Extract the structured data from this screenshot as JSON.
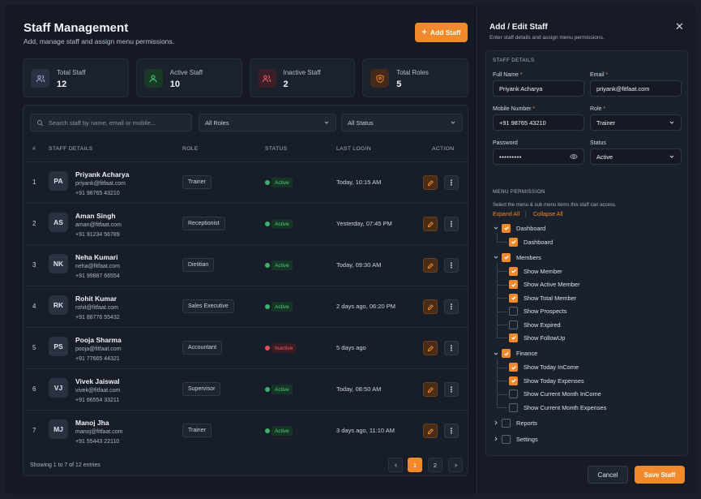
{
  "header": {
    "title": "Staff Management",
    "subtitle": "Add, manage staff and assign menu permissions.",
    "add_button": "Add Staff"
  },
  "stats": [
    {
      "label": "Total Staff",
      "value": "12",
      "icon": "users-icon",
      "color": "#6b7fa8"
    },
    {
      "label": "Active Staff",
      "value": "10",
      "icon": "user-check-icon",
      "color": "#3fb06a"
    },
    {
      "label": "Inactive Staff",
      "value": "2",
      "icon": "user-x-icon",
      "color": "#d9505a"
    },
    {
      "label": "Total Roles",
      "value": "5",
      "icon": "roles-icon",
      "color": "#f08a2c"
    }
  ],
  "filters": {
    "search_placeholder": "Search staff by name, email or mobile...",
    "role_select": "All Roles",
    "status_select": "All Status"
  },
  "table": {
    "headers": {
      "num": "#",
      "details": "STAFF DETAILS",
      "role": "ROLE",
      "status": "STATUS",
      "login": "LAST LOGIN",
      "action": "ACTION"
    },
    "rows": [
      {
        "num": "1",
        "initials": "PA",
        "name": "Priyank Acharya",
        "email": "priyank@fitfaat.com",
        "phone": "+91 98765 43210",
        "role": "Trainer",
        "status": "Active",
        "login": "Today, 10:15 AM"
      },
      {
        "num": "2",
        "initials": "AS",
        "name": "Aman Singh",
        "email": "aman@fitfaat.com",
        "phone": "+91 91234 56789",
        "role": "Receptionist",
        "status": "Active",
        "login": "Yesterday, 07:45 PM"
      },
      {
        "num": "3",
        "initials": "NK",
        "name": "Neha Kumari",
        "email": "neha@fitfaat.com",
        "phone": "+91 99887 66554",
        "role": "Dietitian",
        "status": "Active",
        "login": "Today, 09:30 AM"
      },
      {
        "num": "4",
        "initials": "RK",
        "name": "Rohit Kumar",
        "email": "rohit@fitfaat.com",
        "phone": "+91 88776 55432",
        "role": "Sales Executive",
        "status": "Active",
        "login": "2 days ago, 06:20 PM"
      },
      {
        "num": "5",
        "initials": "PS",
        "name": "Pooja Sharma",
        "email": "pooja@fitfaat.com",
        "phone": "+91 77665 44321",
        "role": "Accountant",
        "status": "Inactive",
        "login": "5 days ago"
      },
      {
        "num": "6",
        "initials": "VJ",
        "name": "Vivek Jaiswal",
        "email": "vivek@fitfaat.com",
        "phone": "+91 66554 33211",
        "role": "Supervisor",
        "status": "Active",
        "login": "Today, 08:50 AM"
      },
      {
        "num": "7",
        "initials": "MJ",
        "name": "Manoj Jha",
        "email": "manoj@fitfaat.com",
        "phone": "+91 55443 22110",
        "role": "Trainer",
        "status": "Active",
        "login": "3 days ago, 11:10 AM"
      }
    ],
    "footer": "Showing 1 to 7 of 12 entries",
    "pages": [
      "1",
      "2"
    ],
    "current_page": "1"
  },
  "drawer": {
    "title": "Add / Edit Staff",
    "subtitle": "Enter staff details and assign menu permissions.",
    "section_details": "STAFF DETAILS",
    "fields": {
      "full_name_label": "Full Name",
      "full_name": "Priyank Acharya",
      "email_label": "Email",
      "email": "priyank@fitfaat.com",
      "mobile_label": "Mobile Number",
      "mobile": "+91 98765 43210",
      "role_label": "Role",
      "role": "Trainer",
      "password_label": "Password",
      "password": "•••••••••",
      "status_label": "Status",
      "status": "Active"
    },
    "section_permission": "MENU PERMISSION",
    "permission_desc": "Select the menu & sub menu items this staff can access.",
    "expand_all": "Expand All",
    "collapse_all": "Collapse All",
    "separator": "|",
    "tree": [
      {
        "label": "Dashboard",
        "checked": true,
        "expanded": true,
        "children": [
          {
            "label": "Dashboard",
            "checked": true
          }
        ]
      },
      {
        "label": "Members",
        "checked": true,
        "expanded": true,
        "children": [
          {
            "label": "Show Member",
            "checked": true
          },
          {
            "label": "Show Active Member",
            "checked": true
          },
          {
            "label": "Show Total Member",
            "checked": true
          },
          {
            "label": "Show Prospects",
            "checked": false
          },
          {
            "label": "Show Expired",
            "checked": false
          },
          {
            "label": "Show FollowUp",
            "checked": true
          }
        ]
      },
      {
        "label": "Finance",
        "checked": true,
        "expanded": true,
        "children": [
          {
            "label": "Show Today InCome",
            "checked": true
          },
          {
            "label": "Show Today Expenses",
            "checked": true
          },
          {
            "label": "Show Current Month InCome",
            "checked": false
          },
          {
            "label": "Show Current Month Expenses",
            "checked": false
          }
        ]
      },
      {
        "label": "Reports",
        "checked": false,
        "expanded": false,
        "children": []
      },
      {
        "label": "Settings",
        "checked": false,
        "expanded": false,
        "children": []
      }
    ],
    "cancel": "Cancel",
    "save": "Save Staff"
  }
}
